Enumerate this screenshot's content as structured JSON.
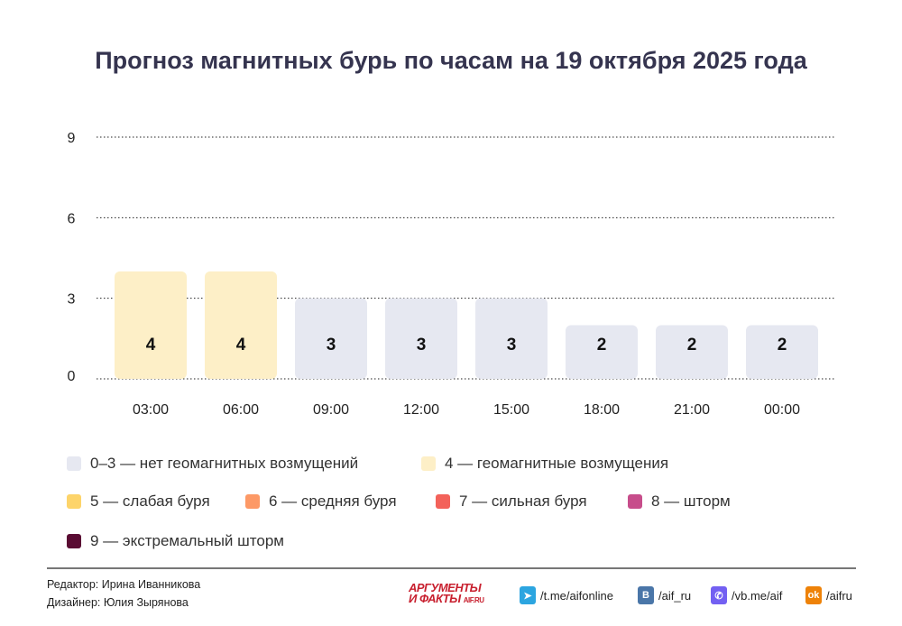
{
  "title": "Прогноз магнитных бурь по часам на 19 октября 2025 года",
  "chart_data": {
    "type": "bar",
    "title": "Прогноз магнитных бурь по часам на 19 октября 2025 года",
    "categories": [
      "03:00",
      "06:00",
      "09:00",
      "12:00",
      "15:00",
      "18:00",
      "21:00",
      "00:00"
    ],
    "values": [
      4,
      4,
      3,
      3,
      3,
      2,
      2,
      2
    ],
    "ylim": [
      0,
      9
    ],
    "yticks": [
      0,
      3,
      6,
      9
    ],
    "grid": true,
    "gridstyle": "dotted",
    "legend_placement": "bottom",
    "color_scale": [
      {
        "label": "0–3 — нет геомагнитных возмущений",
        "color": "#e6e8f1",
        "max": 3
      },
      {
        "label": "4 — геомагнитные возмущения",
        "color": "#fdefc7",
        "max": 4
      },
      {
        "label": "5 — слабая буря",
        "color": "#fdd46a",
        "max": 5
      },
      {
        "label": "6 — средняя буря",
        "color": "#fd9966",
        "max": 6
      },
      {
        "label": "7 — сильная буря",
        "color": "#f3625a",
        "max": 7
      },
      {
        "label": "8 — шторм",
        "color": "#c74d8b",
        "max": 8
      },
      {
        "label": "9 — экстремальный шторм",
        "color": "#5a0c33",
        "max": 9
      }
    ]
  },
  "footer": {
    "editor": "Редактор: Ирина Иванникова",
    "designer": "Дизайнер: Юлия Зырянова",
    "logo": "АРГУМЕНТЫ И ФАКТЫ AIF.RU",
    "logo_line1": "АРГУМЕНТЫ",
    "logo_line2": "И ФАКТЫ",
    "logo_site": "AIF.RU",
    "social": [
      {
        "icon": "telegram-icon",
        "label": "/t.me/aifonline",
        "color": "#2ca5e0"
      },
      {
        "icon": "vk-icon",
        "label": "/aif_ru",
        "color": "#4a76a8"
      },
      {
        "icon": "viber-icon",
        "label": "/vb.me/aif",
        "color": "#7360f2"
      },
      {
        "icon": "odnoklassniki-icon",
        "label": "/aifru",
        "color": "#ee8208"
      }
    ]
  }
}
